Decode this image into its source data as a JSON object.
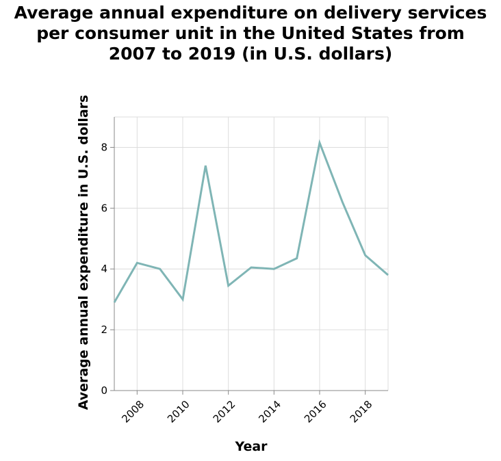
{
  "chart_data": {
    "type": "line",
    "title_lines": [
      "Average annual expenditure on delivery services",
      "per consumer unit in the United States from",
      "2007 to 2019 (in U.S. dollars)"
    ],
    "xlabel": "Year",
    "ylabel": "Average annual expenditure in U.S. dollars",
    "xlim": [
      2007,
      2019
    ],
    "ylim": [
      0,
      9
    ],
    "xticks": [
      2008,
      2010,
      2012,
      2014,
      2016,
      2018
    ],
    "yticks": [
      0,
      2,
      4,
      6,
      8
    ],
    "grid": true,
    "legend": false,
    "line_color": "#7fb5b5",
    "x": [
      2007,
      2008,
      2009,
      2010,
      2011,
      2012,
      2013,
      2014,
      2015,
      2016,
      2017,
      2018,
      2019
    ],
    "values": [
      2.9,
      4.2,
      4.0,
      3.0,
      7.4,
      3.45,
      4.05,
      4.0,
      4.35,
      8.15,
      6.2,
      4.45,
      3.8
    ]
  }
}
